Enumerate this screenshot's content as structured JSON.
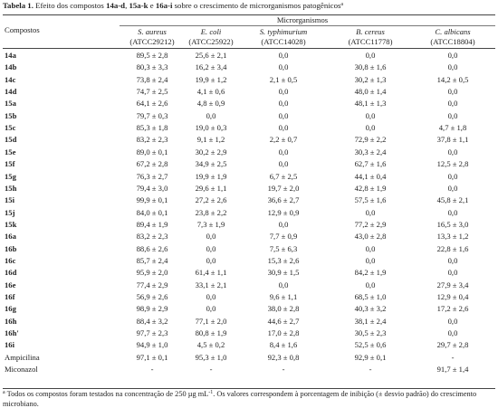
{
  "header": {
    "title": [
      "Tabela 1.",
      " Efeito dos compostos ",
      "14a-d",
      ", ",
      "15a-k",
      " e ",
      "16a-i",
      " sobre o crescimento de microrganismos patogênicos",
      "a"
    ]
  },
  "table": {
    "stub_header": "Compostos",
    "group_header": "Microrganismos",
    "columns": [
      {
        "species": "S. aureus",
        "strain": "(ATCC29212)"
      },
      {
        "species": "E. coli",
        "strain": "(ATCC25922)"
      },
      {
        "species": "S. typhimurium",
        "strain": "(ATCC14028)"
      },
      {
        "species": "B. cereus",
        "strain": "(ATCC11778)"
      },
      {
        "species": "C. albicans",
        "strain": "(ATCC18804)"
      }
    ],
    "rows": [
      [
        "14a",
        "89,5 ± 2,8",
        "25,6 ± 2,1",
        "0,0",
        "0,0",
        "0,0"
      ],
      [
        "14b",
        "80,3 ± 3,3",
        "16,2 ± 3,4",
        "0,0",
        "30,8 ± 1,6",
        "0,0"
      ],
      [
        "14c",
        "73,8 ± 2,4",
        "19,9 ± 1,2",
        "2,1 ± 0,5",
        "30,2 ± 1,3",
        "14,2 ± 0,5"
      ],
      [
        "14d",
        "74,7 ± 2,5",
        "4,1 ± 0,6",
        "0,0",
        "48,0 ± 1,4",
        "0,0"
      ],
      [
        "15a",
        "64,1 ± 2,6",
        "4,8 ± 0,9",
        "0,0",
        "48,1 ± 1,3",
        "0,0"
      ],
      [
        "15b",
        "79,7 ± 0,3",
        "0,0",
        "0,0",
        "0,0",
        "0,0"
      ],
      [
        "15c",
        "85,3 ± 1,8",
        "19,0 ± 0,3",
        "0,0",
        "0,0",
        "4,7 ± 1,8"
      ],
      [
        "15d",
        "83,2 ± 2,3",
        "9,1 ± 1,2",
        "2,2 ± 0,7",
        "72,9 ± 2,2",
        "37,8 ± 1,1"
      ],
      [
        "15e",
        "89,0 ± 0,1",
        "30,2 ± 2,9",
        "0,0",
        "30,3 ± 2,4",
        "0,0"
      ],
      [
        "15f",
        "67,2 ± 2,8",
        "34,9 ± 2,5",
        "0,0",
        "62,7 ± 1,6",
        "12,5 ± 2,8"
      ],
      [
        "15g",
        "76,3 ± 2,7",
        "19,9 ± 1,9",
        "6,7 ± 2,5",
        "44,1 ± 0,4",
        "0,0"
      ],
      [
        "15h",
        "79,4 ± 3,0",
        "29,6 ± 1,1",
        "19,7 ± 2,0",
        "42,8 ± 1,9",
        "0,0"
      ],
      [
        "15i",
        "99,9 ± 0,1",
        "27,2 ± 2,6",
        "36,6 ± 2,7",
        "57,5 ± 1,6",
        "45,8 ± 2,1"
      ],
      [
        "15j",
        "84,0 ± 0,1",
        "23,8 ± 2,2",
        "12,9 ± 0,9",
        "0,0",
        "0,0"
      ],
      [
        "15k",
        "89,4 ± 1,9",
        "7,3 ± 1,9",
        "0,0",
        "77,2 ± 2,9",
        "16,5 ± 3,0"
      ],
      [
        "16a",
        "83,2 ± 2,3",
        "0,0",
        "7,7 ± 0,9",
        "43,0 ± 2,8",
        "13,3 ± 1,2"
      ],
      [
        "16b",
        "88,6 ± 2,6",
        "0,0",
        "7,5 ± 6,3",
        "0,0",
        "22,8 ± 1,6"
      ],
      [
        "16c",
        "85,7 ± 2,4",
        "0,0",
        "15,3 ± 2,6",
        "0,0",
        "0,0"
      ],
      [
        "16d",
        "95,9 ± 2,0",
        "61,4 ± 1,1",
        "30,9 ± 1,5",
        "84,2 ± 1,9",
        "0,0"
      ],
      [
        "16e",
        "77,4 ± 2,9",
        "33,1 ± 2,1",
        "0,0",
        "0,0",
        "27,9 ± 3,4"
      ],
      [
        "16f",
        "56,9 ± 2,6",
        "0,0",
        "9,6 ± 1,1",
        "68,5 ± 1,0",
        "12,9 ± 0,4"
      ],
      [
        "16g",
        "98,9 ± 2,9",
        "0,0",
        "38,0 ± 2,8",
        "40,3 ± 3,2",
        "17,2 ± 2,6"
      ],
      [
        "16h",
        "88,4 ± 3,2",
        "77,1 ± 2,0",
        "44,6 ± 2,7",
        "38,1 ± 2,4",
        "0,0"
      ],
      [
        "16h'",
        "97,7 ± 2,3",
        "80,8 ± 1,9",
        "17,0 ± 2,8",
        "30,5 ± 2,3",
        "0,0"
      ],
      [
        "16i",
        "94,9 ± 1,0",
        "4,5 ± 0,2",
        "8,4 ± 1,6",
        "52,5 ± 0,6",
        "29,7 ± 2,8"
      ],
      [
        "Ampicilina",
        "97,1 ± 0,1",
        "95,3 ± 1,0",
        "92,3 ± 0,8",
        "92,9 ± 0,1",
        "-"
      ],
      [
        "Miconazol",
        "-",
        "-",
        "-",
        "-",
        "91,7 ± 1,4"
      ]
    ]
  },
  "footnote": [
    "a",
    " Todos os compostos foram testados na concentração de 250 µg mL",
    "-1",
    ". Os valores correspondem à porcentagem de inibição (± desvio padrão) do crescimento microbiano."
  ]
}
